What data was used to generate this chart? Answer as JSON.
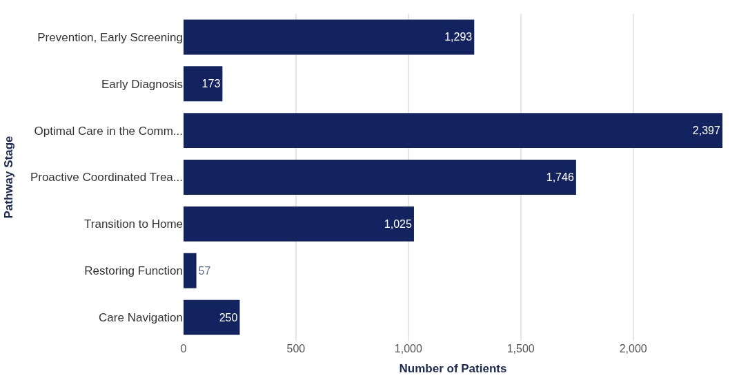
{
  "chart_data": {
    "type": "bar",
    "orientation": "horizontal",
    "xlabel": "Number of Patients",
    "ylabel": "Pathway Stage",
    "categories": [
      "Prevention, Early Screening",
      "Early Diagnosis",
      "Optimal Care in the Comm...",
      "Proactive Coordinated Trea...",
      "Transition to Home",
      "Restoring Function",
      "Care Navigation"
    ],
    "values": [
      1293,
      173,
      2397,
      1746,
      1025,
      57,
      250
    ],
    "value_labels": [
      "1,293",
      "173",
      "2,397",
      "1,746",
      "1,025",
      "57",
      "250"
    ],
    "color": "#12235f",
    "xlim": [
      0,
      2397
    ],
    "xticks": [
      0,
      {
        "value": 500,
        "label": "500"
      },
      {
        "value": 1000,
        "label": "1,000"
      },
      {
        "value": 1500,
        "label": "1,500"
      },
      {
        "value": 2000,
        "label": "2,000"
      }
    ],
    "grid": "x",
    "legend": false
  }
}
